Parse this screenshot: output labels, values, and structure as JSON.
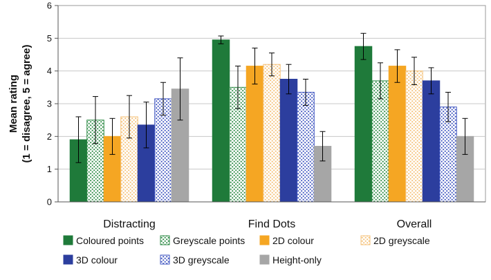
{
  "chart_data": {
    "type": "bar",
    "title": "",
    "xlabel": "",
    "ylabel": "Mean rating",
    "ylabel_line2": "(1 = disagree, 5 = agree)",
    "ylim": [
      0,
      6
    ],
    "yticks": [
      "0",
      "1",
      "2",
      "3",
      "4",
      "5",
      "6"
    ],
    "grid": true,
    "legend_position": "bottom",
    "categories": [
      "Distracting",
      "Find Dots",
      "Overall"
    ],
    "series": [
      {
        "name": "Coloured points",
        "fill": "#1f7a3a",
        "pattern": "solid",
        "values": [
          1.9,
          4.95,
          4.75
        ],
        "err": [
          0.7,
          0.12,
          0.4
        ]
      },
      {
        "name": "Greyscale points",
        "fill": "#2e8b46",
        "pattern": "dots-white",
        "values": [
          2.5,
          3.5,
          3.7
        ],
        "err": [
          0.72,
          0.65,
          0.55
        ]
      },
      {
        "name": "2D colour",
        "fill": "#f5a623",
        "pattern": "solid",
        "values": [
          2.0,
          4.15,
          4.15
        ],
        "err": [
          0.55,
          0.55,
          0.5
        ]
      },
      {
        "name": "2D greyscale",
        "fill": "#f5c27a",
        "pattern": "dots-white",
        "values": [
          2.6,
          4.2,
          4.0
        ],
        "err": [
          0.65,
          0.35,
          0.42
        ]
      },
      {
        "name": "3D colour",
        "fill": "#2c3e9e",
        "pattern": "solid",
        "values": [
          2.35,
          3.75,
          3.7
        ],
        "err": [
          0.7,
          0.45,
          0.4
        ]
      },
      {
        "name": "3D greyscale",
        "fill": "#3f55c0",
        "pattern": "dots-white",
        "values": [
          3.15,
          3.35,
          2.9
        ],
        "err": [
          0.5,
          0.4,
          0.45
        ]
      },
      {
        "name": "Height-only",
        "fill": "#a6a6a6",
        "pattern": "solid",
        "values": [
          3.45,
          1.7,
          2.0
        ],
        "err": [
          0.95,
          0.45,
          0.55
        ]
      }
    ]
  }
}
